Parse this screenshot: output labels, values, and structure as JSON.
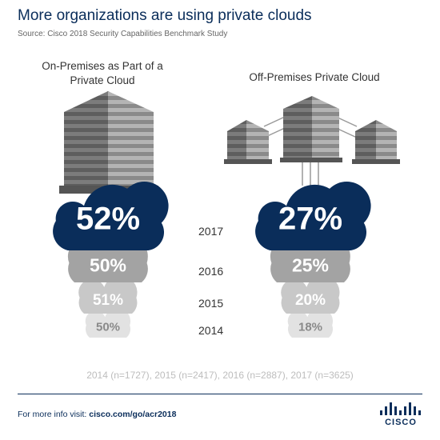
{
  "title": "More organizations are using private clouds",
  "source": "Source: Cisco 2018 Security Capabilities Benchmark Study",
  "sample_note": "2014 (n=1727), 2015 (n=2417), 2016 (n=2887), 2017 (n=3625)",
  "footer": {
    "prefix": "For more info visit:",
    "link": "cisco.com/go/acr2018"
  },
  "logo_text": "CISCO",
  "colors": {
    "navy": "#0a2d5a",
    "gray_2016": "#a3a3a3",
    "gray_2015": "#c8c8c8",
    "gray_2014": "#e2e2e2"
  },
  "chart_data": {
    "type": "bar",
    "categories": [
      "2017",
      "2016",
      "2015",
      "2014"
    ],
    "series": [
      {
        "name": "On-Premises as Part of a Private Cloud",
        "values": [
          52,
          50,
          51,
          50
        ],
        "labels": [
          "52%",
          "50%",
          "51%",
          "50%"
        ]
      },
      {
        "name": "Off-Premises Private Cloud",
        "values": [
          27,
          25,
          20,
          18
        ],
        "labels": [
          "27%",
          "25%",
          "20%",
          "18%"
        ]
      }
    ]
  }
}
